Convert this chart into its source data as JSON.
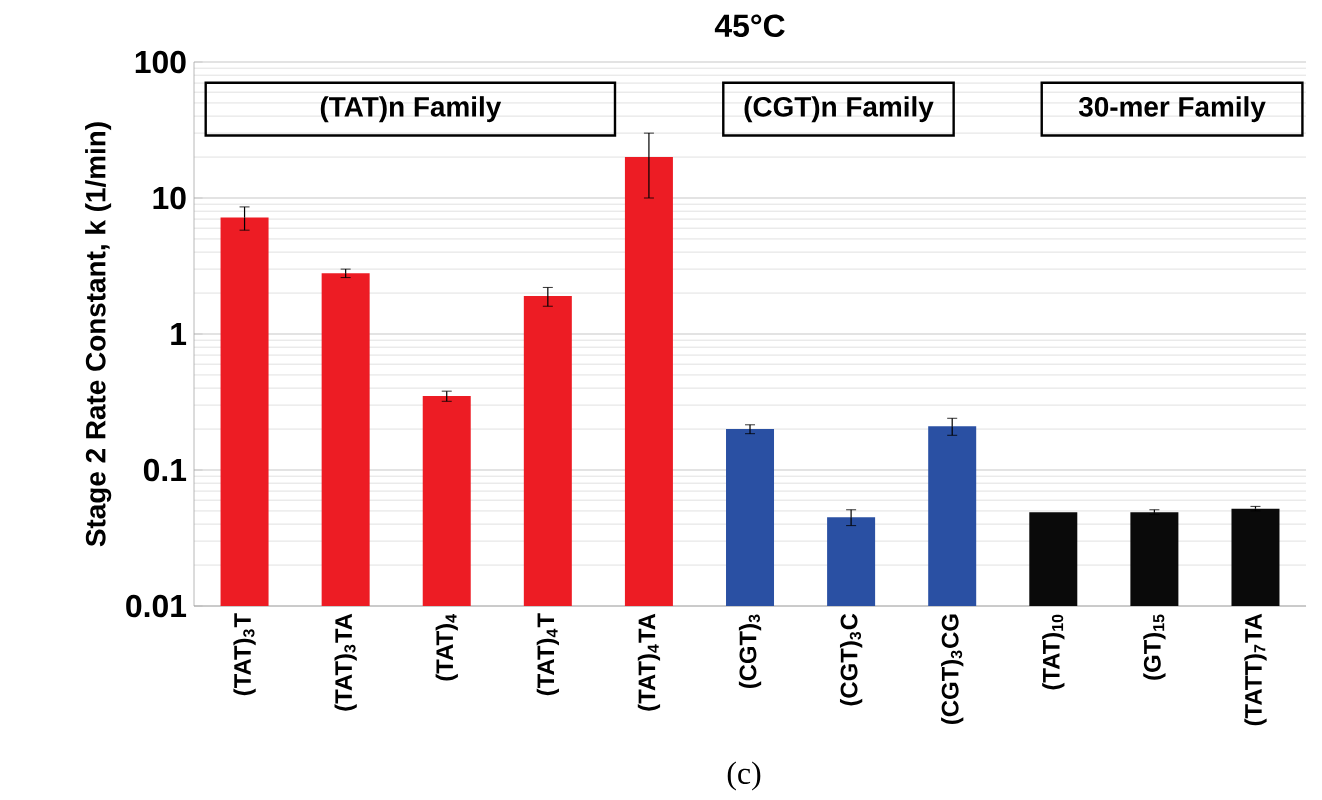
{
  "chart_data": {
    "type": "bar",
    "title": "45°C",
    "ylabel": "Stage 2 Rate Constant, k (1/min)",
    "categories": [
      "(TAT)$_{3}$T",
      "(TAT)$_{3}$TA",
      "(TAT)$_{4}$",
      "(TAT)$_{4}$T",
      "(TAT)$_{4}$TA",
      "(CGT)$_{3}$",
      "(CGT)$_{3}$C",
      "(CGT)$_{3}$CG",
      "(TAT)$_{10}$",
      "(GT)$_{15}$",
      "(TATT)$_{7}$TA"
    ],
    "values": [
      7.2,
      2.8,
      0.35,
      1.9,
      20,
      0.2,
      0.045,
      0.21,
      0.049,
      0.049,
      0.052
    ],
    "errors": [
      1.4,
      0.2,
      0.03,
      0.3,
      10,
      0.015,
      0.006,
      0.03,
      null,
      0.002,
      0.002
    ],
    "colors": [
      "#ed1c24",
      "#ed1c24",
      "#ed1c24",
      "#ed1c24",
      "#ed1c24",
      "#2a50a3",
      "#2a50a3",
      "#2a50a3",
      "#0a0a0a",
      "#0a0a0a",
      "#0a0a0a"
    ],
    "log": "y",
    "ylim": [
      0.01,
      100
    ],
    "yticks": [
      0.01,
      0.1,
      1,
      10,
      100
    ],
    "grid": "y",
    "annotations": [
      "(TAT)n Family",
      "(CGT)n Family",
      "30-mer Family",
      "(c)"
    ]
  }
}
